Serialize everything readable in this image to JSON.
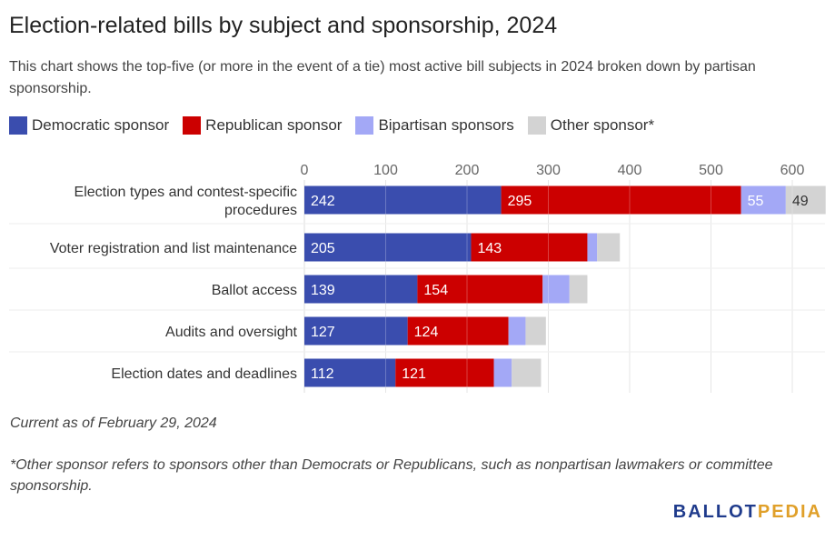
{
  "title": "Election-related bills by subject and sponsorship, 2024",
  "subtitle": "This chart shows the top-five (or more in the event of a tie) most active bill subjects in 2024 broken down by partisan sponsorship.",
  "colors": {
    "democratic": "#3a4dae",
    "republican": "#cc0000",
    "bipartisan": "#a3a8f6",
    "other": "#d3d3d3"
  },
  "legend": [
    {
      "label": "Democratic sponsor",
      "color": "#3a4dae"
    },
    {
      "label": "Republican sponsor",
      "color": "#cc0000"
    },
    {
      "label": "Bipartisan sponsors",
      "color": "#a3a8f6"
    },
    {
      "label": "Other sponsor*",
      "color": "#d3d3d3"
    }
  ],
  "chart_data": {
    "type": "bar",
    "orientation": "horizontal",
    "stacked": true,
    "categories": [
      [
        "Election types and contest-specific",
        "procedures"
      ],
      [
        "Voter registration and list maintenance"
      ],
      [
        "Ballot access"
      ],
      [
        "Audits and oversight"
      ],
      [
        "Election dates and deadlines"
      ]
    ],
    "series": [
      {
        "name": "Democratic sponsor",
        "values": [
          242,
          205,
          139,
          127,
          112
        ],
        "color": "#3a4dae",
        "label_color": "#ffffff"
      },
      {
        "name": "Republican sponsor",
        "values": [
          295,
          143,
          154,
          124,
          121
        ],
        "color": "#cc0000",
        "label_color": "#ffffff"
      },
      {
        "name": "Bipartisan sponsors",
        "values": [
          55,
          12,
          33,
          21,
          22
        ],
        "color": "#a3a8f6",
        "label_color": "#ffffff"
      },
      {
        "name": "Other sponsor*",
        "values": [
          49,
          28,
          22,
          25,
          36
        ],
        "color": "#d3d3d3",
        "label_color": "#333333"
      }
    ],
    "value_labels_shown": [
      [
        true,
        true,
        true,
        true
      ],
      [
        true,
        true,
        false,
        false
      ],
      [
        true,
        true,
        false,
        false
      ],
      [
        true,
        true,
        false,
        false
      ],
      [
        true,
        true,
        false,
        false
      ]
    ],
    "xticks": [
      0,
      100,
      200,
      300,
      400,
      500,
      600
    ],
    "xlim": [
      0,
      641
    ],
    "grid": true,
    "xaxis_position": "top",
    "legend_position": "top"
  },
  "notes": {
    "current": "Current as of February 29, 2024",
    "other_def": "*Other sponsor refers to sponsors other than Democrats or Republicans, such as nonpartisan lawmakers or committee sponsorship."
  },
  "logo": {
    "part1": "BALLOT",
    "part2": "PEDIA"
  }
}
